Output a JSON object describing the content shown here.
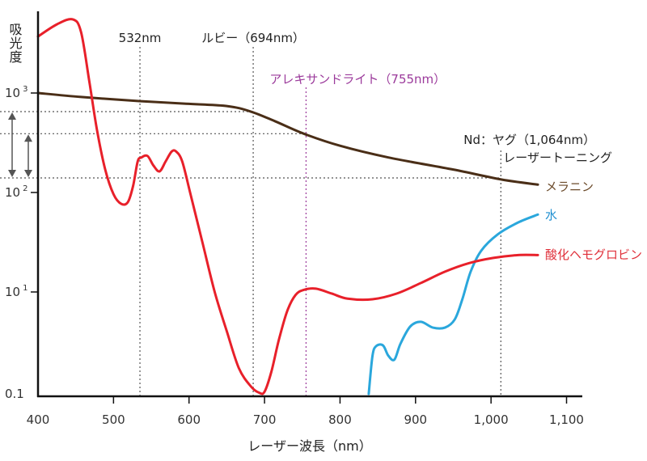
{
  "chart_data": {
    "type": "line",
    "title": "",
    "xlabel": "レーザー波長（nm）",
    "ylabel": "吸光度",
    "xlim": [
      400,
      1120
    ],
    "y_scale": "log",
    "x_ticks": [
      {
        "value": 400,
        "label": "400"
      },
      {
        "value": 500,
        "label": "500"
      },
      {
        "value": 600,
        "label": "600"
      },
      {
        "value": 700,
        "label": "700"
      },
      {
        "value": 800,
        "label": "800"
      },
      {
        "value": 900,
        "label": "900"
      },
      {
        "value": 1000,
        "label": "1,000"
      },
      {
        "value": 1100,
        "label": "1,100"
      }
    ],
    "y_ticks": [
      {
        "value": 1000,
        "base": "10",
        "exp": "3"
      },
      {
        "value": 100,
        "base": "10",
        "exp": "2"
      },
      {
        "value": 10,
        "base": "10",
        "exp": "1"
      },
      {
        "value": 0.1,
        "base": "0.1",
        "exp": ""
      }
    ],
    "series": [
      {
        "name": "メラニン",
        "color": "#4a2e17",
        "label_color": "#6b4a2a",
        "x": [
          400,
          457,
          534,
          596,
          650,
          682,
          714,
          752,
          800,
          864,
          950,
          1014,
          1062
        ],
        "y": [
          1000,
          912,
          830,
          780,
          740,
          650,
          520,
          390,
          295,
          225,
          170,
          135,
          120
        ]
      },
      {
        "name": "水",
        "color": "#2aa7dc",
        "label_color": "#1f8fd0",
        "x": [
          838,
          843,
          848,
          857,
          864,
          872,
          880,
          893,
          907,
          923,
          939,
          952,
          962,
          973,
          987,
          1009,
          1036,
          1062
        ],
        "y": [
          0.1,
          0.56,
          0.87,
          0.89,
          0.56,
          0.47,
          0.96,
          2.1,
          2.6,
          2.0,
          2.0,
          2.9,
          7.2,
          16,
          26,
          38,
          50,
          60
        ]
      },
      {
        "name": "酸化ヘモグロビン",
        "color": "#e8202a",
        "label_color": "#e0303a",
        "x": [
          400,
          425,
          446,
          457,
          468,
          478,
          489,
          500,
          510,
          519,
          526,
          532,
          537,
          545,
          553,
          561,
          569,
          577,
          583,
          591,
          602,
          618,
          634,
          650,
          666,
          682,
          693,
          700,
          709,
          719,
          730,
          741,
          752,
          768,
          789,
          810,
          843,
          875,
          907,
          939,
          971,
          1003,
          1036,
          1062
        ],
        "y": [
          3700,
          4900,
          5500,
          4100,
          1300,
          430,
          170,
          96,
          77,
          80,
          117,
          205,
          225,
          233,
          186,
          163,
          205,
          258,
          258,
          205,
          96,
          31,
          10,
          1.7,
          0.32,
          0.14,
          0.105,
          0.11,
          0.27,
          1.15,
          4.2,
          8.7,
          10.5,
          10.8,
          9.3,
          7.4,
          7.2,
          9.3,
          12.3,
          16,
          19.5,
          22,
          23.5,
          23.5
        ]
      }
    ],
    "wavelength_markers": [
      {
        "label": "532nm",
        "x": 535,
        "color": "#555555"
      },
      {
        "label": "ルビー（694nm）",
        "x": 685,
        "color": "#555555"
      },
      {
        "label": "アレキサンドライト（755nm）",
        "x": 755,
        "color": "#9b3a9b"
      },
      {
        "label": "Nd：ヤグ（1,064nm）",
        "sublabel": "レーザートーニング",
        "x": 1013,
        "color": "#555555"
      }
    ],
    "reference_levels": [
      650,
      390,
      140
    ],
    "grid": false,
    "legend": "inline-right"
  }
}
